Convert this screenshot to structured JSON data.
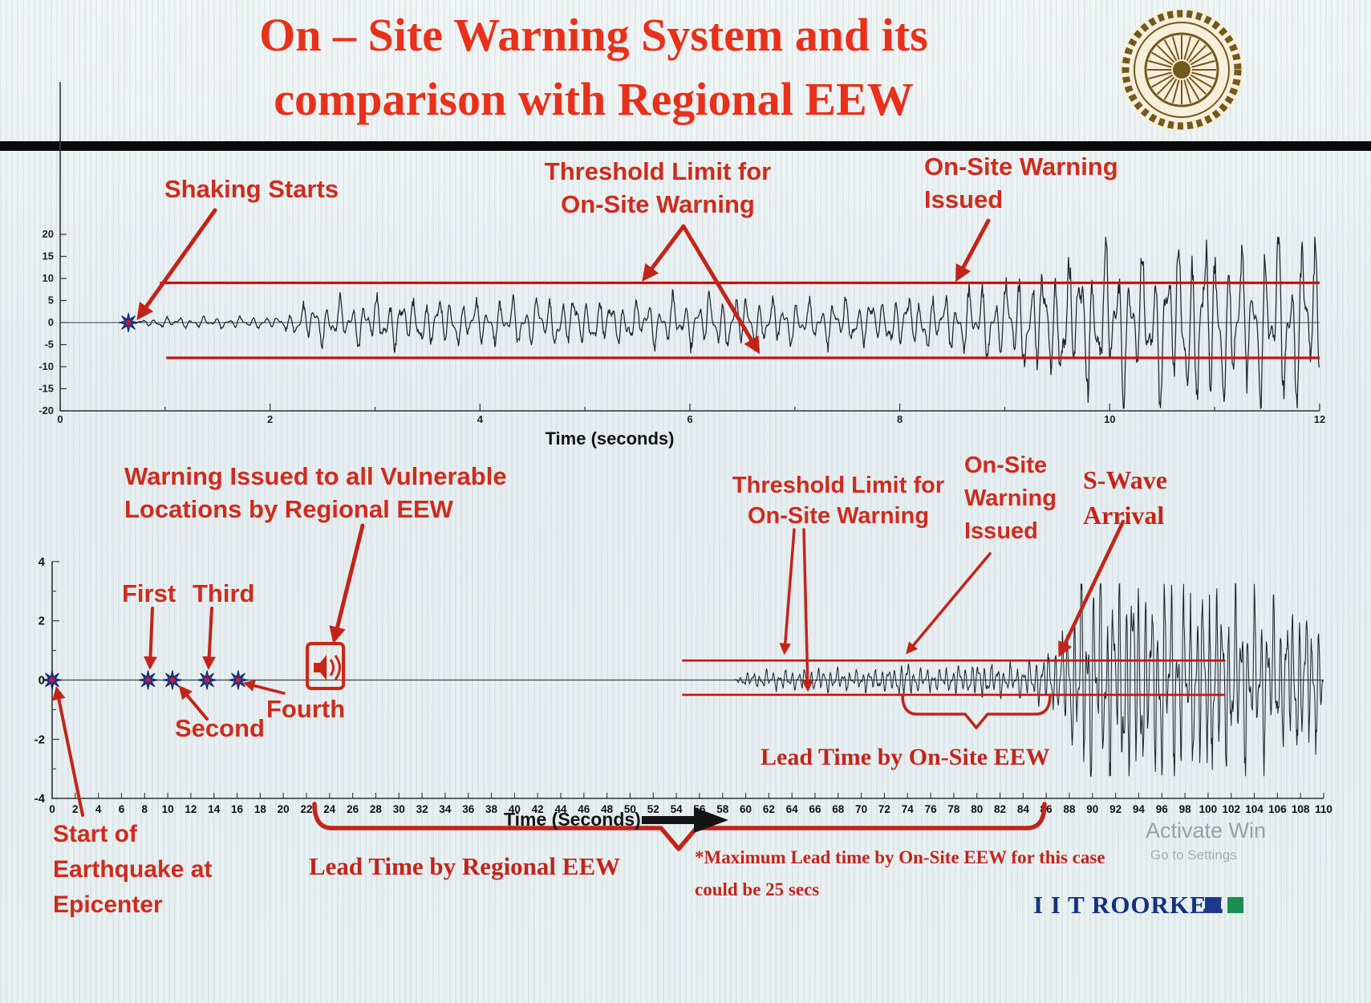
{
  "slide": {
    "title_lines": [
      "On – Site Warning System and its",
      "comparison with Regional EEW"
    ],
    "brand": "I I T ROORKEE",
    "watermark_line1": "Activate Win",
    "watermark_line2": "Go to Settings"
  },
  "colors": {
    "accent_red": "#cf2b1d",
    "threshold_red": "#c41414",
    "arrow_red": "#c3241a",
    "waveform": "#1c2631",
    "marker_blue": "#1d3a9e",
    "marker_center_red": "#d01818",
    "brand_navy": "#14327d",
    "brand_green": "#1c8c50"
  },
  "chart_data": [
    {
      "name": "onsite-seismic-record",
      "type": "line",
      "xlabel": "Time (seconds)",
      "ylabel": "",
      "xlim": [
        0,
        12
      ],
      "ylim": [
        -20,
        20
      ],
      "x_ticks": [
        0,
        2,
        4,
        6,
        8,
        10,
        12
      ],
      "x_minor_step": 1,
      "y_ticks": [
        20,
        15,
        10,
        5,
        0,
        -5,
        -10,
        -15,
        -20
      ],
      "grid": false,
      "threshold_upper": 9,
      "threshold_lower": -8,
      "threshold_start_s": 0.95,
      "shaking_start_s": 0.65,
      "onsite_warning_issued_s": 8.6,
      "frequency_hz": 8.5,
      "envelope_t_amp": [
        [
          0.65,
          0
        ],
        [
          0.9,
          0.9
        ],
        [
          2.1,
          1.0
        ],
        [
          2.35,
          3.4
        ],
        [
          3.1,
          4.6
        ],
        [
          3.9,
          3.7
        ],
        [
          4.7,
          4.4
        ],
        [
          5.5,
          3.8
        ],
        [
          6.3,
          4.7
        ],
        [
          7.1,
          3.8
        ],
        [
          7.9,
          4.3
        ],
        [
          8.5,
          5.2
        ],
        [
          9.0,
          7.5
        ],
        [
          9.5,
          10.5
        ],
        [
          10.0,
          13.5
        ],
        [
          10.4,
          12.0
        ],
        [
          10.8,
          16.0
        ],
        [
          11.3,
          13.0
        ],
        [
          11.7,
          17.0
        ],
        [
          12.0,
          14.5
        ]
      ],
      "annotations": {
        "shaking_starts": "Shaking Starts",
        "threshold_line1": "Threshold Limit for",
        "threshold_line2": "On-Site Warning",
        "issued_line1": "On-Site Warning",
        "issued_line2": "Issued"
      }
    },
    {
      "name": "regional-vs-onsite-record",
      "type": "line",
      "xlabel": "Time (Seconds)",
      "ylabel": "",
      "xlim": [
        0,
        110
      ],
      "ylim": [
        -4,
        4
      ],
      "x_tick_step": 2,
      "y_ticks": [
        -4,
        -2,
        0,
        2,
        4
      ],
      "y_minor_step": 1,
      "grid": false,
      "threshold_upper": 0.66,
      "threshold_lower": -0.5,
      "threshold_span_s": [
        54.5,
        101.5
      ],
      "earthquake_start_s": 0,
      "p_wave_warning_times_s": [
        8.3,
        10.4,
        13.4,
        16.1
      ],
      "regional_warning_issued_s": 23.6,
      "signal_onset_s": 59,
      "s_wave_arrival_s": 87,
      "frequency_hz": 1.8,
      "envelope_t_amp": [
        [
          59,
          0
        ],
        [
          60,
          0.18
        ],
        [
          63,
          0.25
        ],
        [
          66,
          0.3
        ],
        [
          69,
          0.26
        ],
        [
          72,
          0.3
        ],
        [
          73,
          0.32
        ],
        [
          73.8,
          0.6
        ],
        [
          74.5,
          0.3
        ],
        [
          77,
          0.3
        ],
        [
          79,
          0.38
        ],
        [
          81,
          0.45
        ],
        [
          83,
          0.4
        ],
        [
          84.5,
          0.5
        ],
        [
          86,
          0.65
        ],
        [
          87,
          1.0
        ],
        [
          88,
          1.9
        ],
        [
          89,
          2.6
        ],
        [
          90.5,
          2.95
        ],
        [
          92,
          2.5
        ],
        [
          93.5,
          2.9
        ],
        [
          95,
          2.3
        ],
        [
          96.5,
          2.75
        ],
        [
          98,
          2.2
        ],
        [
          100,
          2.6
        ],
        [
          102,
          2.1
        ],
        [
          104,
          2.35
        ],
        [
          106,
          1.85
        ],
        [
          108,
          2.05
        ],
        [
          110,
          1.6
        ]
      ],
      "annotations": {
        "regional_line1": "Warning Issued to all Vulnerable",
        "regional_line2": "Locations by Regional EEW",
        "first": "First",
        "second": "Second",
        "third": "Third",
        "fourth": "Fourth",
        "threshold_line1": "Threshold Limit for",
        "threshold_line2": "On-Site Warning",
        "issued_line1": "On-Site",
        "issued_line2": "Warning",
        "issued_line3": "Issued",
        "swave_line1": "S-Wave",
        "swave_line2": "Arrival",
        "lead_onsite": "Lead Time by On-Site EEW",
        "lead_regional": "Lead Time by Regional EEW",
        "max_lead_line1": "*Maximum Lead time by On-Site EEW for this case",
        "max_lead_line2": "could be 25 secs",
        "start_line1": "Start of",
        "start_line2": "Earthquake at",
        "start_line3": "Epicenter"
      }
    }
  ]
}
